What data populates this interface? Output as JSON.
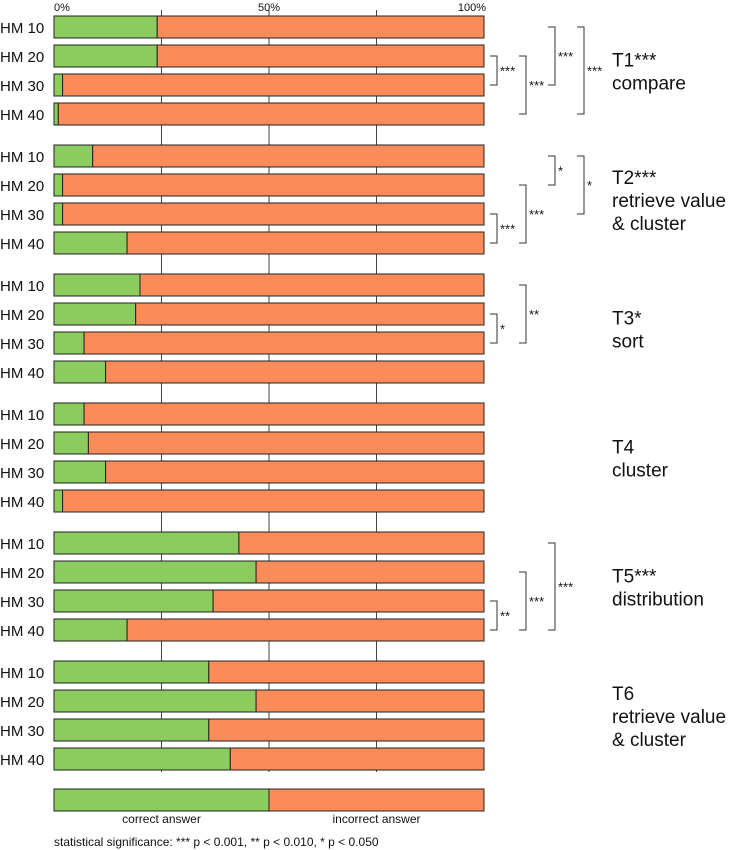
{
  "chart_data": {
    "type": "bar",
    "stacked": "100%",
    "orientation": "horizontal",
    "x_ticks": [
      "0%",
      "50%",
      "100%"
    ],
    "xlim": [
      0,
      100
    ],
    "grid": "vertical lines at 25%, 50%, 75%",
    "colors": {
      "correct": "#8ccc5e",
      "incorrect": "#fa8c5a",
      "outline": "#222222"
    },
    "legend": {
      "correct": "correct answer",
      "incorrect": "incorrect answer",
      "placement": "bottom"
    },
    "row_labels": [
      "HM 10",
      "HM 20",
      "HM 30",
      "HM 40"
    ],
    "groups": [
      {
        "task_lines": [
          "T1***",
          "compare"
        ],
        "correct": [
          24,
          24,
          2,
          1
        ],
        "significance": [
          {
            "from": 1,
            "to": 2,
            "label": "***",
            "level": 1
          },
          {
            "from": 1,
            "to": 3,
            "label": "***",
            "level": 2
          },
          {
            "from": 0,
            "to": 2,
            "label": "***",
            "level": 3
          },
          {
            "from": 0,
            "to": 3,
            "label": "***",
            "level": 4
          }
        ]
      },
      {
        "task_lines": [
          "T2***",
          "retrieve value",
          "& cluster"
        ],
        "correct": [
          9,
          2,
          2,
          17
        ],
        "significance": [
          {
            "from": 2,
            "to": 3,
            "label": "***",
            "level": 1
          },
          {
            "from": 1,
            "to": 3,
            "label": "***",
            "level": 2
          },
          {
            "from": 0,
            "to": 1,
            "label": "*",
            "level": 3
          },
          {
            "from": 0,
            "to": 2,
            "label": "*",
            "level": 4
          }
        ]
      },
      {
        "task_lines": [
          "T3*",
          "sort"
        ],
        "correct": [
          20,
          19,
          7,
          12
        ],
        "significance": [
          {
            "from": 1,
            "to": 2,
            "label": "*",
            "level": 1
          },
          {
            "from": 0,
            "to": 2,
            "label": "**",
            "level": 2
          }
        ]
      },
      {
        "task_lines": [
          "T4",
          "cluster"
        ],
        "correct": [
          7,
          8,
          12,
          2
        ],
        "significance": []
      },
      {
        "task_lines": [
          "T5***",
          "distribution"
        ],
        "correct": [
          43,
          47,
          37,
          17
        ],
        "significance": [
          {
            "from": 2,
            "to": 3,
            "label": "**",
            "level": 1
          },
          {
            "from": 1,
            "to": 3,
            "label": "***",
            "level": 2
          },
          {
            "from": 0,
            "to": 3,
            "label": "***",
            "level": 3
          }
        ]
      },
      {
        "task_lines": [
          "T6",
          "retrieve value",
          "& cluster"
        ],
        "correct": [
          36,
          47,
          36,
          41
        ],
        "significance": []
      }
    ],
    "footnote": "statistical significance: *** p < 0.001, ** p < 0.010, * p < 0.050"
  }
}
